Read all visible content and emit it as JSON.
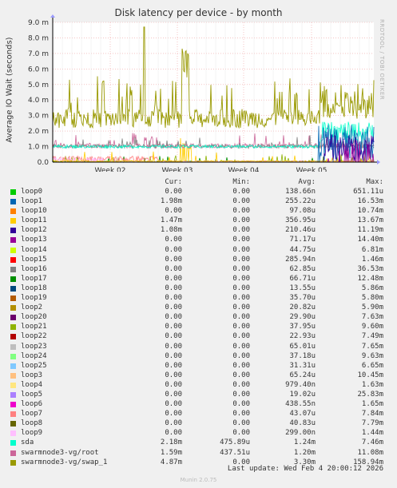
{
  "chart_data": {
    "type": "line",
    "title": "Disk latency per device - by month",
    "ylabel": "Average IO Wait (seconds)",
    "side_label": "RRDTOOL / TOBI OETIKER",
    "y_ticks": [
      "0.0",
      "1.0 m",
      "2.0 m",
      "3.0 m",
      "4.0 m",
      "5.0 m",
      "6.0 m",
      "7.0 m",
      "8.0 m",
      "9.0 m"
    ],
    "ylim": [
      0,
      0.009
    ],
    "x_ticks": [
      "Week 02",
      "Week 03",
      "Week 04",
      "Week 05"
    ],
    "grid": true,
    "legend_headers": {
      "cur": "Cur:",
      "min": "Min:",
      "avg": "Avg:",
      "max": "Max:"
    },
    "series": [
      {
        "name": "loop0",
        "color": "#00cc00",
        "cur": "0.00",
        "min": "0.00",
        "avg": "138.66n",
        "max": "651.11u"
      },
      {
        "name": "loop1",
        "color": "#0066b3",
        "cur": "1.98m",
        "min": "0.00",
        "avg": "255.22u",
        "max": "16.53m"
      },
      {
        "name": "loop10",
        "color": "#ff8000",
        "cur": "0.00",
        "min": "0.00",
        "avg": "97.08u",
        "max": "10.74m"
      },
      {
        "name": "loop11",
        "color": "#ffcc00",
        "cur": "1.47m",
        "min": "0.00",
        "avg": "356.95u",
        "max": "13.67m"
      },
      {
        "name": "loop12",
        "color": "#330099",
        "cur": "1.08m",
        "min": "0.00",
        "avg": "210.46u",
        "max": "11.19m"
      },
      {
        "name": "loop13",
        "color": "#990099",
        "cur": "0.00",
        "min": "0.00",
        "avg": "71.17u",
        "max": "14.40m"
      },
      {
        "name": "loop14",
        "color": "#ccff00",
        "cur": "0.00",
        "min": "0.00",
        "avg": "44.75u",
        "max": "6.81m"
      },
      {
        "name": "loop15",
        "color": "#ff0000",
        "cur": "0.00",
        "min": "0.00",
        "avg": "285.94n",
        "max": "1.46m"
      },
      {
        "name": "loop16",
        "color": "#808080",
        "cur": "0.00",
        "min": "0.00",
        "avg": "62.85u",
        "max": "36.53m"
      },
      {
        "name": "loop17",
        "color": "#008f00",
        "cur": "0.00",
        "min": "0.00",
        "avg": "66.71u",
        "max": "12.48m"
      },
      {
        "name": "loop18",
        "color": "#00487d",
        "cur": "0.00",
        "min": "0.00",
        "avg": "13.55u",
        "max": "5.86m"
      },
      {
        "name": "loop19",
        "color": "#b35a00",
        "cur": "0.00",
        "min": "0.00",
        "avg": "35.70u",
        "max": "5.80m"
      },
      {
        "name": "loop2",
        "color": "#b38f00",
        "cur": "0.00",
        "min": "0.00",
        "avg": "20.82u",
        "max": "5.90m"
      },
      {
        "name": "loop20",
        "color": "#6b006b",
        "cur": "0.00",
        "min": "0.00",
        "avg": "29.90u",
        "max": "7.63m"
      },
      {
        "name": "loop21",
        "color": "#8fb300",
        "cur": "0.00",
        "min": "0.00",
        "avg": "37.95u",
        "max": "9.60m"
      },
      {
        "name": "loop22",
        "color": "#b30000",
        "cur": "0.00",
        "min": "0.00",
        "avg": "22.93u",
        "max": "7.49m"
      },
      {
        "name": "loop23",
        "color": "#bebebe",
        "cur": "0.00",
        "min": "0.00",
        "avg": "65.01u",
        "max": "7.65m"
      },
      {
        "name": "loop24",
        "color": "#80ff80",
        "cur": "0.00",
        "min": "0.00",
        "avg": "37.18u",
        "max": "9.63m"
      },
      {
        "name": "loop25",
        "color": "#80c9ff",
        "cur": "0.00",
        "min": "0.00",
        "avg": "31.31u",
        "max": "6.65m"
      },
      {
        "name": "loop3",
        "color": "#ffc080",
        "cur": "0.00",
        "min": "0.00",
        "avg": "65.24u",
        "max": "10.45m"
      },
      {
        "name": "loop4",
        "color": "#ffe680",
        "cur": "0.00",
        "min": "0.00",
        "avg": "979.40n",
        "max": "1.63m"
      },
      {
        "name": "loop5",
        "color": "#aa80ff",
        "cur": "0.00",
        "min": "0.00",
        "avg": "19.02u",
        "max": "25.83m"
      },
      {
        "name": "loop6",
        "color": "#ee00cc",
        "cur": "0.00",
        "min": "0.00",
        "avg": "438.55n",
        "max": "1.65m"
      },
      {
        "name": "loop7",
        "color": "#ff8080",
        "cur": "0.00",
        "min": "0.00",
        "avg": "43.07u",
        "max": "7.84m"
      },
      {
        "name": "loop8",
        "color": "#666600",
        "cur": "0.00",
        "min": "0.00",
        "avg": "40.83u",
        "max": "7.79m"
      },
      {
        "name": "loop9",
        "color": "#ffbfff",
        "cur": "0.00",
        "min": "0.00",
        "avg": "299.00n",
        "max": "1.44m"
      },
      {
        "name": "sda",
        "color": "#00ffcc",
        "cur": "2.18m",
        "min": "475.89u",
        "avg": "1.24m",
        "max": "7.46m"
      },
      {
        "name": "swarmnode3-vg/root",
        "color": "#cc6699",
        "cur": "1.59m",
        "min": "437.51u",
        "avg": "1.20m",
        "max": "11.08m"
      },
      {
        "name": "swarmnode3-vg/swap_1",
        "color": "#999900",
        "cur": "4.87m",
        "min": "0.00",
        "avg": "3.30m",
        "max": "158.94m"
      }
    ]
  },
  "footer": {
    "last_update": "Last update: Wed Feb  4 20:00:12 2026",
    "version": "Munin 2.0.75"
  }
}
